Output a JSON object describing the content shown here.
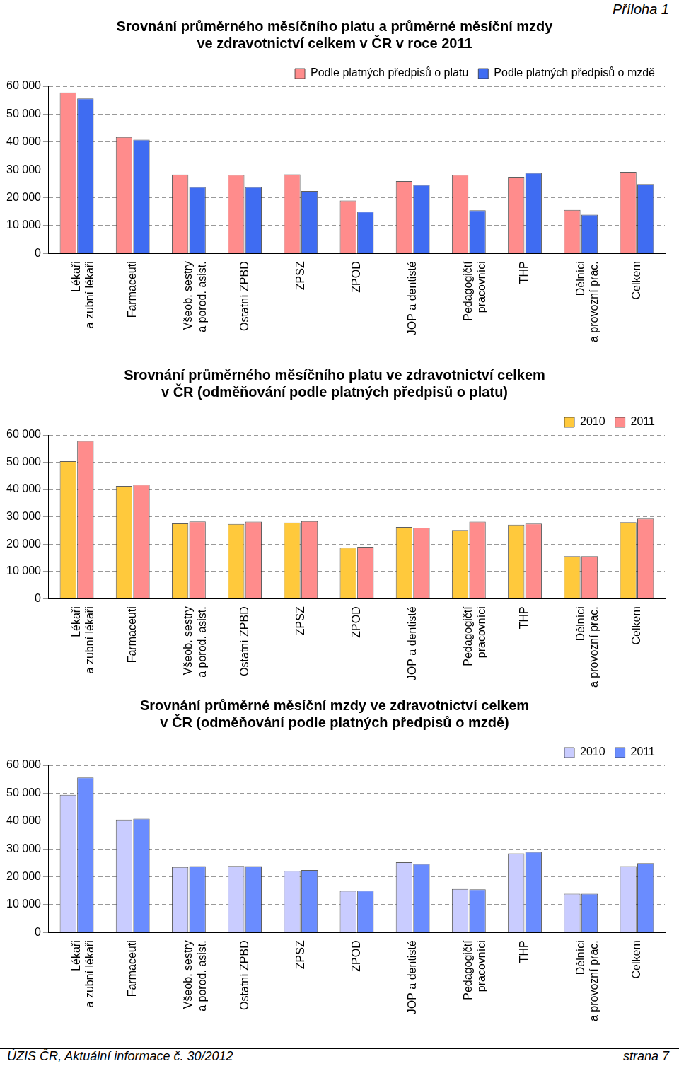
{
  "page": {
    "annex": "Příloha 1",
    "footer_left": "ÚZIS ČR, Aktuální informace č. 30/2012",
    "footer_right": "strana 7"
  },
  "chart_data": [
    {
      "type": "bar",
      "title": [
        "Srovnání průměrného měsíčního platu a průměrné měsíční mzdy",
        "ve zdravotnictví celkem v ČR v roce 2011"
      ],
      "categories": [
        [
          "Lékaři",
          "a zubní lékaři"
        ],
        [
          "Farmaceuti"
        ],
        [
          "Všeob. sestry",
          "a porod. asist."
        ],
        [
          "Ostatní ZPBD"
        ],
        [
          "ZPSZ"
        ],
        [
          "ZPOD"
        ],
        [
          "JOP a dentisté"
        ],
        [
          "Pedagogičtí",
          "pracovníci"
        ],
        [
          "THP"
        ],
        [
          "Dělníci",
          "a provozní prac."
        ],
        [
          "Celkem"
        ]
      ],
      "series": [
        {
          "name": "Podle platných předpisů o platu",
          "color": "#ff8c8c",
          "values": [
            57800,
            41800,
            28300,
            28200,
            28400,
            19000,
            26000,
            28200,
            27500,
            15600,
            29300
          ]
        },
        {
          "name": "Podle platných předpisů o mzdě",
          "color": "#3f6cf2",
          "values": [
            55600,
            40800,
            23800,
            23800,
            22400,
            15000,
            24600,
            15500,
            28900,
            13900,
            24900
          ]
        }
      ],
      "ylim": [
        0,
        60000
      ],
      "yticks": [
        0,
        {
          "value": 10000,
          "label": "10 000"
        },
        {
          "value": 20000,
          "label": "20 000"
        },
        {
          "value": 30000,
          "label": "30 000"
        },
        {
          "value": 40000,
          "label": "40 000"
        },
        {
          "value": 50000,
          "label": "50 000"
        },
        {
          "value": 60000,
          "label": "60 000"
        }
      ],
      "grid": true,
      "legend": "top-right"
    },
    {
      "type": "bar",
      "title": [
        "Srovnání průměrného měsíčního platu ve zdravotnictví celkem",
        "v ČR (odměňování podle platných předpisů o platu)"
      ],
      "categories": [
        [
          "Lékaři",
          "a zubní lékaři"
        ],
        [
          "Farmaceuti"
        ],
        [
          "Všeob. sestry",
          "a porod. asist."
        ],
        [
          "Ostatní ZPBD"
        ],
        [
          "ZPSZ"
        ],
        [
          "ZPOD"
        ],
        [
          "JOP a dentisté"
        ],
        [
          "Pedagogičtí",
          "pracovníci"
        ],
        [
          "THP"
        ],
        [
          "Dělníci",
          "a provozní prac."
        ],
        [
          "Celkem"
        ]
      ],
      "series": [
        {
          "name": "2010",
          "color": "#ffc93c",
          "values": [
            50400,
            41300,
            27600,
            27400,
            27900,
            18700,
            26300,
            25200,
            27100,
            15600,
            28000
          ]
        },
        {
          "name": "2011",
          "color": "#ff8c8c",
          "values": [
            57800,
            41800,
            28300,
            28200,
            28400,
            19000,
            26000,
            28200,
            27500,
            15600,
            29300
          ]
        }
      ],
      "ylim": [
        0,
        60000
      ],
      "yticks": [
        0,
        {
          "value": 10000,
          "label": "10 000"
        },
        {
          "value": 20000,
          "label": "20 000"
        },
        {
          "value": 30000,
          "label": "30 000"
        },
        {
          "value": 40000,
          "label": "40 000"
        },
        {
          "value": 50000,
          "label": "50 000"
        },
        {
          "value": 60000,
          "label": "60 000"
        }
      ],
      "grid": true,
      "legend": "top-right"
    },
    {
      "type": "bar",
      "title": [
        "Srovnání průměrné měsíční mzdy ve zdravotnictví celkem",
        "v ČR (odměňování podle platných předpisů o mzdě)"
      ],
      "categories": [
        [
          "Lékaři",
          "a zubní lékaři"
        ],
        [
          "Farmaceuti"
        ],
        [
          "Všeob. sestry",
          "a porod. asist."
        ],
        [
          "Ostatní ZPBD"
        ],
        [
          "ZPSZ"
        ],
        [
          "ZPOD"
        ],
        [
          "JOP a dentisté"
        ],
        [
          "Pedagogičtí",
          "pracovníci"
        ],
        [
          "THP"
        ],
        [
          "Dělníci",
          "a provozní prac."
        ],
        [
          "Celkem"
        ]
      ],
      "series": [
        {
          "name": "2010",
          "color": "#c9ccff",
          "values": [
            49400,
            40500,
            23500,
            23900,
            22100,
            14900,
            25200,
            15600,
            28400,
            13900,
            23800
          ]
        },
        {
          "name": "2011",
          "color": "#6a8cff",
          "values": [
            55600,
            40800,
            23800,
            23800,
            22400,
            15000,
            24600,
            15500,
            28900,
            13900,
            24900
          ]
        }
      ],
      "ylim": [
        0,
        60000
      ],
      "yticks": [
        0,
        {
          "value": 10000,
          "label": "10 000"
        },
        {
          "value": 20000,
          "label": "20 000"
        },
        {
          "value": 30000,
          "label": "30 000"
        },
        {
          "value": 40000,
          "label": "40 000"
        },
        {
          "value": 50000,
          "label": "50 000"
        },
        {
          "value": 60000,
          "label": "60 000"
        }
      ],
      "grid": true,
      "legend": "top-right"
    }
  ]
}
